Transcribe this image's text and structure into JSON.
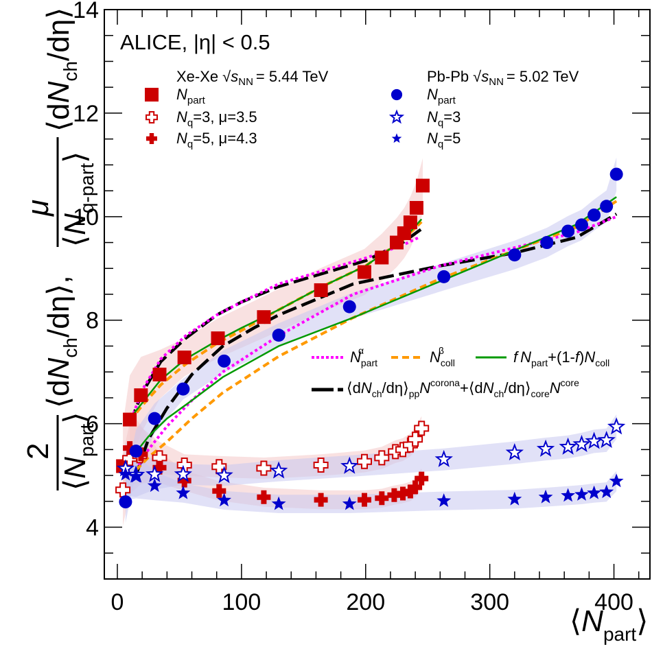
{
  "chart_data": {
    "type": "scatter",
    "title": "",
    "annotation": "ALICE, |η| < 0.5",
    "xlabel": "⟨N_part⟩",
    "ylabel": "2/⟨N_part⟩ ⟨dN_ch/dη⟩, μ/⟨N_q-part⟩ ⟨dN_ch/dη⟩",
    "xlim": [
      -10.5,
      429
    ],
    "ylim": [
      3.0,
      14.0
    ],
    "x_ticks": [
      "0",
      "100",
      "200",
      "300",
      "400"
    ],
    "y_ticks": [
      "4",
      "6",
      "8",
      "10",
      "12",
      "14"
    ],
    "grid": false,
    "legend_groups": [
      {
        "header": "Xe-Xe √s_NN = 5.44 TeV",
        "system": "Xe-Xe",
        "energy": "5.44 TeV",
        "entries": [
          "N_part",
          "N_q=3, μ=3.5",
          "N_q=5, μ=4.3"
        ]
      },
      {
        "header": "Pb-Pb √s_NN = 5.02 TeV",
        "system": "Pb-Pb",
        "energy": "5.02 TeV",
        "entries": [
          "N_part",
          "N_q=3",
          "N_q=5"
        ]
      }
    ],
    "model_legend": [
      {
        "label": "N_part^α",
        "style": "dotted",
        "color": "#ff00ff"
      },
      {
        "label": "N_coll^β",
        "style": "dashed",
        "color": "#ff9900"
      },
      {
        "label": "f N_part+(1-f)N_coll",
        "style": "solid",
        "color": "#009900"
      },
      {
        "label": "⟨dN_ch/dη⟩_pp N_part^corona+⟨dN_ch/dη⟩_core N_part^core",
        "style": "long-dash",
        "color": "#000000"
      }
    ],
    "series": [
      {
        "name": "Xe-Xe N_part",
        "marker": "square",
        "color": "#cc0000",
        "band_color": "#f4c8c8",
        "x": [
          4.5,
          10,
          19,
          34,
          54,
          81,
          118,
          164,
          199,
          213,
          225,
          231,
          236,
          241,
          246
        ],
        "y": [
          5.18,
          6.08,
          6.55,
          6.95,
          7.28,
          7.65,
          8.06,
          8.58,
          8.93,
          9.21,
          9.5,
          9.68,
          9.89,
          10.17,
          10.6
        ]
      },
      {
        "name": "Xe-Xe N_q=3, μ=3.5",
        "marker": "open-cross",
        "color": "#cc0000",
        "band_color": "#f4c8c8",
        "x": [
          4.5,
          10,
          18,
          34,
          54,
          82,
          118,
          164,
          199,
          213,
          224,
          230,
          236,
          240,
          245
        ],
        "y": [
          4.72,
          5.33,
          5.38,
          5.34,
          5.2,
          5.17,
          5.14,
          5.2,
          5.27,
          5.34,
          5.46,
          5.5,
          5.59,
          5.7,
          5.91
        ]
      },
      {
        "name": "Xe-Xe N_q=5, μ=4.3",
        "marker": "filled-cross",
        "color": "#cc0000",
        "band_color": "#f4c8c8",
        "x": [
          10,
          19,
          34,
          54,
          82,
          118,
          164,
          199,
          213,
          223,
          230,
          236,
          240,
          245
        ],
        "y": [
          5.53,
          5.41,
          5.15,
          4.9,
          4.7,
          4.58,
          4.53,
          4.53,
          4.56,
          4.62,
          4.65,
          4.69,
          4.77,
          4.94
        ]
      },
      {
        "name": "Pb-Pb N_part",
        "marker": "circle",
        "color": "#0000cc",
        "band_color": "#c8c8f0",
        "x": [
          6.6,
          15,
          30,
          53,
          86,
          130,
          187,
          263,
          320,
          346,
          363,
          374,
          384,
          394,
          402
        ],
        "y": [
          4.49,
          5.47,
          6.1,
          6.67,
          7.21,
          7.71,
          8.26,
          8.84,
          9.26,
          9.5,
          9.72,
          9.84,
          10.03,
          10.2,
          10.82
        ]
      },
      {
        "name": "Pb-Pb N_q=3",
        "marker": "open-star",
        "color": "#0000cc",
        "band_color": "#c8c8f0",
        "x": [
          6.6,
          15,
          30,
          53,
          86,
          130,
          187,
          263,
          320,
          345,
          363,
          374,
          384,
          394,
          402
        ],
        "y": [
          5.13,
          5.01,
          5.02,
          5.02,
          5.0,
          5.09,
          5.18,
          5.31,
          5.44,
          5.51,
          5.55,
          5.6,
          5.66,
          5.68,
          5.94
        ]
      },
      {
        "name": "Pb-Pb N_q=5",
        "marker": "filled-star",
        "color": "#0000cc",
        "band_color": "#c8c8f0",
        "x": [
          6.6,
          15,
          30,
          53,
          86,
          130,
          187,
          263,
          320,
          345,
          363,
          374,
          384,
          394,
          402
        ],
        "y": [
          5.02,
          4.98,
          4.8,
          4.66,
          4.52,
          4.45,
          4.45,
          4.51,
          4.54,
          4.58,
          4.61,
          4.63,
          4.66,
          4.68,
          4.89
        ]
      }
    ],
    "curves": [
      {
        "name": "Xe-Xe corona-core",
        "style": "long-dash",
        "color": "#000000",
        "x": [
          10,
          20,
          35,
          55,
          80,
          100,
          130,
          165,
          200,
          230,
          246
        ],
        "y": [
          6.0,
          6.6,
          7.2,
          7.65,
          8.1,
          8.35,
          8.65,
          8.9,
          9.15,
          9.5,
          9.78
        ]
      },
      {
        "name": "Xe-Xe N_part^α",
        "style": "dotted",
        "color": "#ff00ff",
        "x": [
          10,
          20,
          35,
          55,
          80,
          100,
          130,
          165,
          200,
          230,
          243
        ],
        "y": [
          6.0,
          6.65,
          7.25,
          7.7,
          8.1,
          8.35,
          8.7,
          8.95,
          9.2,
          9.45,
          9.6
        ]
      },
      {
        "name": "Xe-Xe N_coll^β",
        "style": "dashed",
        "color": "#ff9900",
        "x": [
          10,
          20,
          35,
          55,
          80,
          100,
          130,
          165,
          200,
          230,
          245
        ],
        "y": [
          6.05,
          6.35,
          6.75,
          7.15,
          7.55,
          7.8,
          8.2,
          8.65,
          9.05,
          9.55,
          9.9
        ]
      },
      {
        "name": "Xe-Xe two-component",
        "style": "solid",
        "color": "#009900",
        "x": [
          10,
          20,
          35,
          55,
          80,
          100,
          130,
          165,
          200,
          230,
          245
        ],
        "y": [
          6.1,
          6.4,
          6.85,
          7.25,
          7.6,
          7.85,
          8.2,
          8.65,
          9.05,
          9.55,
          9.95
        ]
      },
      {
        "name": "Pb-Pb corona-core",
        "style": "long-dash",
        "color": "#000000",
        "x": [
          15,
          25,
          40,
          60,
          85,
          110,
          130,
          190,
          260,
          320,
          370,
          402
        ],
        "y": [
          5.0,
          5.7,
          6.3,
          6.95,
          7.5,
          7.85,
          8.1,
          8.7,
          9.05,
          9.3,
          9.6,
          10.05
        ]
      },
      {
        "name": "Pb-Pb N_part^α",
        "style": "dotted",
        "color": "#ff00ff",
        "x": [
          15,
          25,
          40,
          60,
          85,
          130,
          190,
          260,
          320,
          370,
          402
        ],
        "y": [
          5.1,
          5.5,
          5.95,
          6.45,
          7.0,
          7.7,
          8.5,
          9.05,
          9.4,
          9.7,
          10.0
        ]
      },
      {
        "name": "Pb-Pb N_coll^β",
        "style": "dashed",
        "color": "#ff9900",
        "x": [
          15,
          25,
          40,
          60,
          85,
          130,
          190,
          260,
          320,
          370,
          402
        ],
        "y": [
          5.1,
          5.35,
          5.65,
          6.1,
          6.6,
          7.3,
          8.05,
          8.8,
          9.35,
          9.8,
          10.3
        ]
      },
      {
        "name": "Pb-Pb two-component",
        "style": "solid",
        "color": "#009900",
        "x": [
          15,
          25,
          40,
          60,
          85,
          130,
          190,
          260,
          320,
          370,
          402
        ],
        "y": [
          5.45,
          5.75,
          6.1,
          6.45,
          6.9,
          7.5,
          8.05,
          8.75,
          9.35,
          9.85,
          10.38
        ]
      }
    ]
  },
  "labels": {
    "alice": "ALICE, |η| < 0.5",
    "xe_system": "Xe-Xe",
    "xe_energy": "= 5.44 TeV",
    "pb_system": "Pb-Pb",
    "pb_energy": "= 5.02 TeV",
    "sqrt_s": "s",
    "nn_sub": "NN",
    "n": "N",
    "part_sub": "part",
    "q_sub": "q",
    "nq3_mu": "=3, μ=3.5",
    "nq5_mu": "=5, μ=4.3",
    "nq3": "=3",
    "nq5": "=5",
    "alpha_sup": "α",
    "beta_sup": "β",
    "coll_sub": "coll",
    "f_label": "f",
    "f_mid": "+(1-",
    "f_mid2": ")",
    "corona_sup": "corona",
    "core_sup": "core",
    "core_sub": "core",
    "pp_sub": "pp",
    "ch_sub": "ch",
    "dn_open": "⟨d",
    "deta_close": "/dη⟩",
    "plus_open": "+⟨d",
    "x_open": "⟨",
    "x_close": "⟩",
    "y_two": "2",
    "y_mu": "μ",
    "y_qpart": "q-part",
    "y_comma": ","
  }
}
